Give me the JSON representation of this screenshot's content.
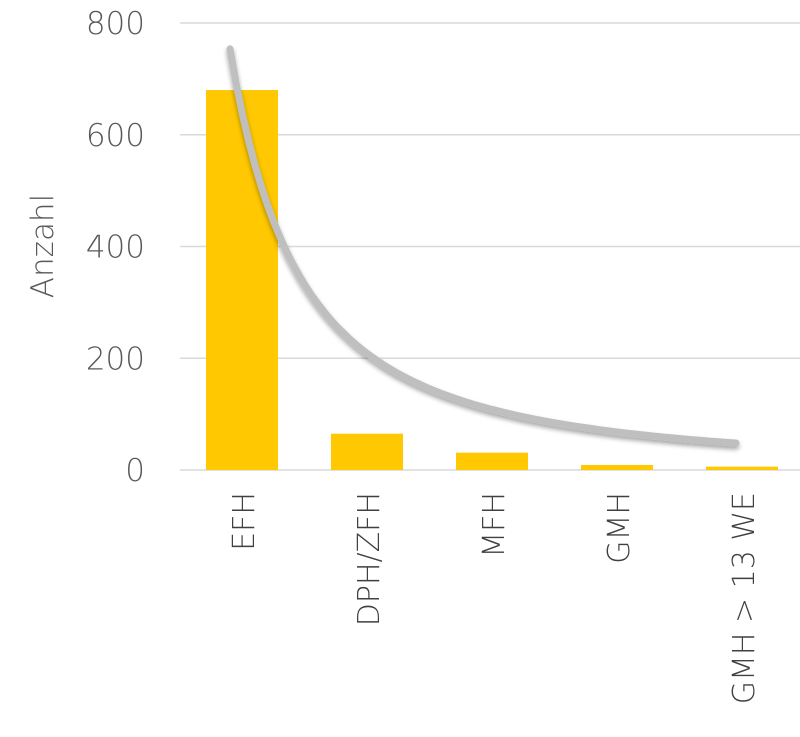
{
  "chart_data": {
    "type": "bar",
    "title": "",
    "xlabel": "",
    "ylabel": "Anzahl",
    "ylim": [
      0,
      800
    ],
    "yticks": [
      0,
      200,
      400,
      600,
      800
    ],
    "grid": true,
    "legend": "none",
    "categories": [
      "EFH",
      "DPH/ZFH",
      "MFH",
      "GMH",
      "GMH > 13 WE"
    ],
    "values": [
      680,
      65,
      31,
      9,
      6
    ],
    "trendline": {
      "type": "power",
      "values": [
        710,
        175,
        105,
        72,
        50
      ]
    },
    "colors": {
      "bar": "#FFC800",
      "trendline": "#BFBFBF",
      "gridline": "#D9D9D9"
    }
  }
}
